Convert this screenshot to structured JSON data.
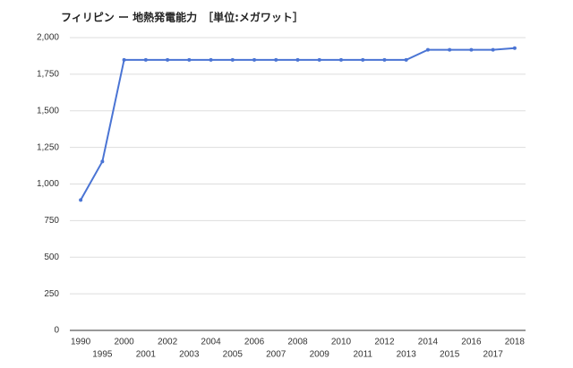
{
  "chart_data": {
    "type": "line",
    "title": "フィリピン ー 地熱発電能力　［単位:メガワット］",
    "categories": [
      "1990",
      "1995",
      "2000",
      "2001",
      "2002",
      "2003",
      "2004",
      "2005",
      "2006",
      "2007",
      "2008",
      "2009",
      "2010",
      "2011",
      "2012",
      "2013",
      "2014",
      "2015",
      "2016",
      "2017",
      "2018"
    ],
    "values": [
      891,
      1154,
      1848,
      1848,
      1848,
      1848,
      1848,
      1848,
      1848,
      1848,
      1848,
      1848,
      1848,
      1848,
      1848,
      1848,
      1917,
      1917,
      1917,
      1917,
      1928
    ],
    "color": "#4a74d4",
    "ylim": [
      0,
      2000
    ],
    "yticks": [
      0,
      250,
      500,
      750,
      {
        "value": 1000,
        "label": "1,000"
      },
      {
        "value": 1250,
        "label": "1,250"
      },
      {
        "value": 1500,
        "label": "1,500"
      },
      {
        "value": 1750,
        "label": "1,750"
      },
      {
        "value": 2000,
        "label": "2,000"
      }
    ],
    "grid": true
  }
}
